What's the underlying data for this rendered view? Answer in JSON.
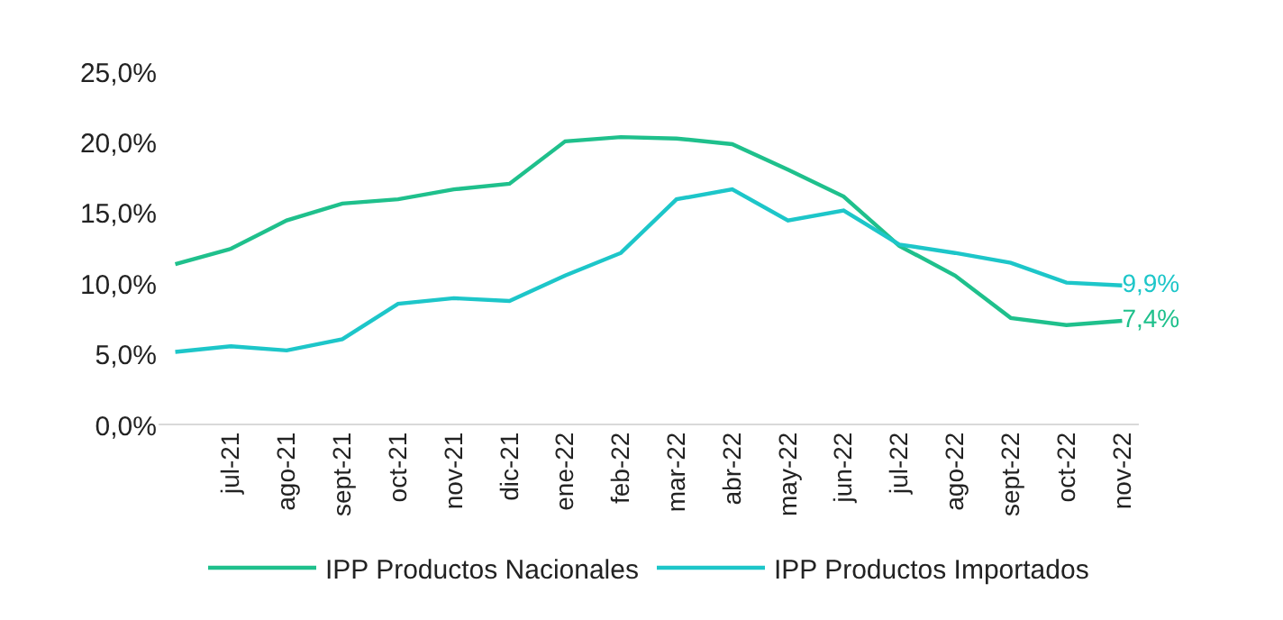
{
  "chart_data": {
    "type": "line",
    "categories": [
      null,
      "jul-21",
      "ago-21",
      "sept-21",
      "oct-21",
      "nov-21",
      "dic-21",
      "ene-22",
      "feb-22",
      "mar-22",
      "abr-22",
      "may-22",
      "jun-22",
      "jul-22",
      "ago-22",
      "sept-22",
      "oct-22",
      "nov-22"
    ],
    "series": [
      {
        "name": "IPP Productos Nacionales",
        "color": "#1fc08c",
        "values": [
          11.4,
          12.5,
          14.5,
          15.7,
          16.0,
          16.7,
          17.1,
          20.1,
          20.4,
          20.3,
          19.9,
          18.1,
          16.2,
          12.7,
          10.6,
          7.6,
          7.1,
          7.4
        ],
        "value_labels": [
          null,
          null,
          null,
          null,
          null,
          null,
          null,
          null,
          null,
          null,
          null,
          null,
          null,
          null,
          null,
          null,
          null,
          "7,4%"
        ]
      },
      {
        "name": "IPP Productos Importados",
        "color": "#1dc6c9",
        "values": [
          5.2,
          5.6,
          5.3,
          6.1,
          8.6,
          9.0,
          8.8,
          10.6,
          12.2,
          16.0,
          16.7,
          14.5,
          15.2,
          12.8,
          12.2,
          11.5,
          10.1,
          9.9
        ],
        "value_labels": [
          null,
          null,
          null,
          null,
          null,
          null,
          null,
          null,
          null,
          null,
          null,
          null,
          null,
          null,
          null,
          null,
          null,
          "9,9%"
        ]
      }
    ],
    "ylim": [
      0,
      25
    ],
    "yticks": [
      {
        "value": 0,
        "label": "0,0%"
      },
      {
        "value": 5,
        "label": "5,0%"
      },
      {
        "value": 10,
        "label": "10,0%"
      },
      {
        "value": 15,
        "label": "15,0%"
      },
      {
        "value": 20,
        "label": "20,0%"
      },
      {
        "value": 25,
        "label": "25,0%"
      }
    ],
    "grid": false,
    "legend": "bottom",
    "marker": "none",
    "line_style": "solid"
  }
}
